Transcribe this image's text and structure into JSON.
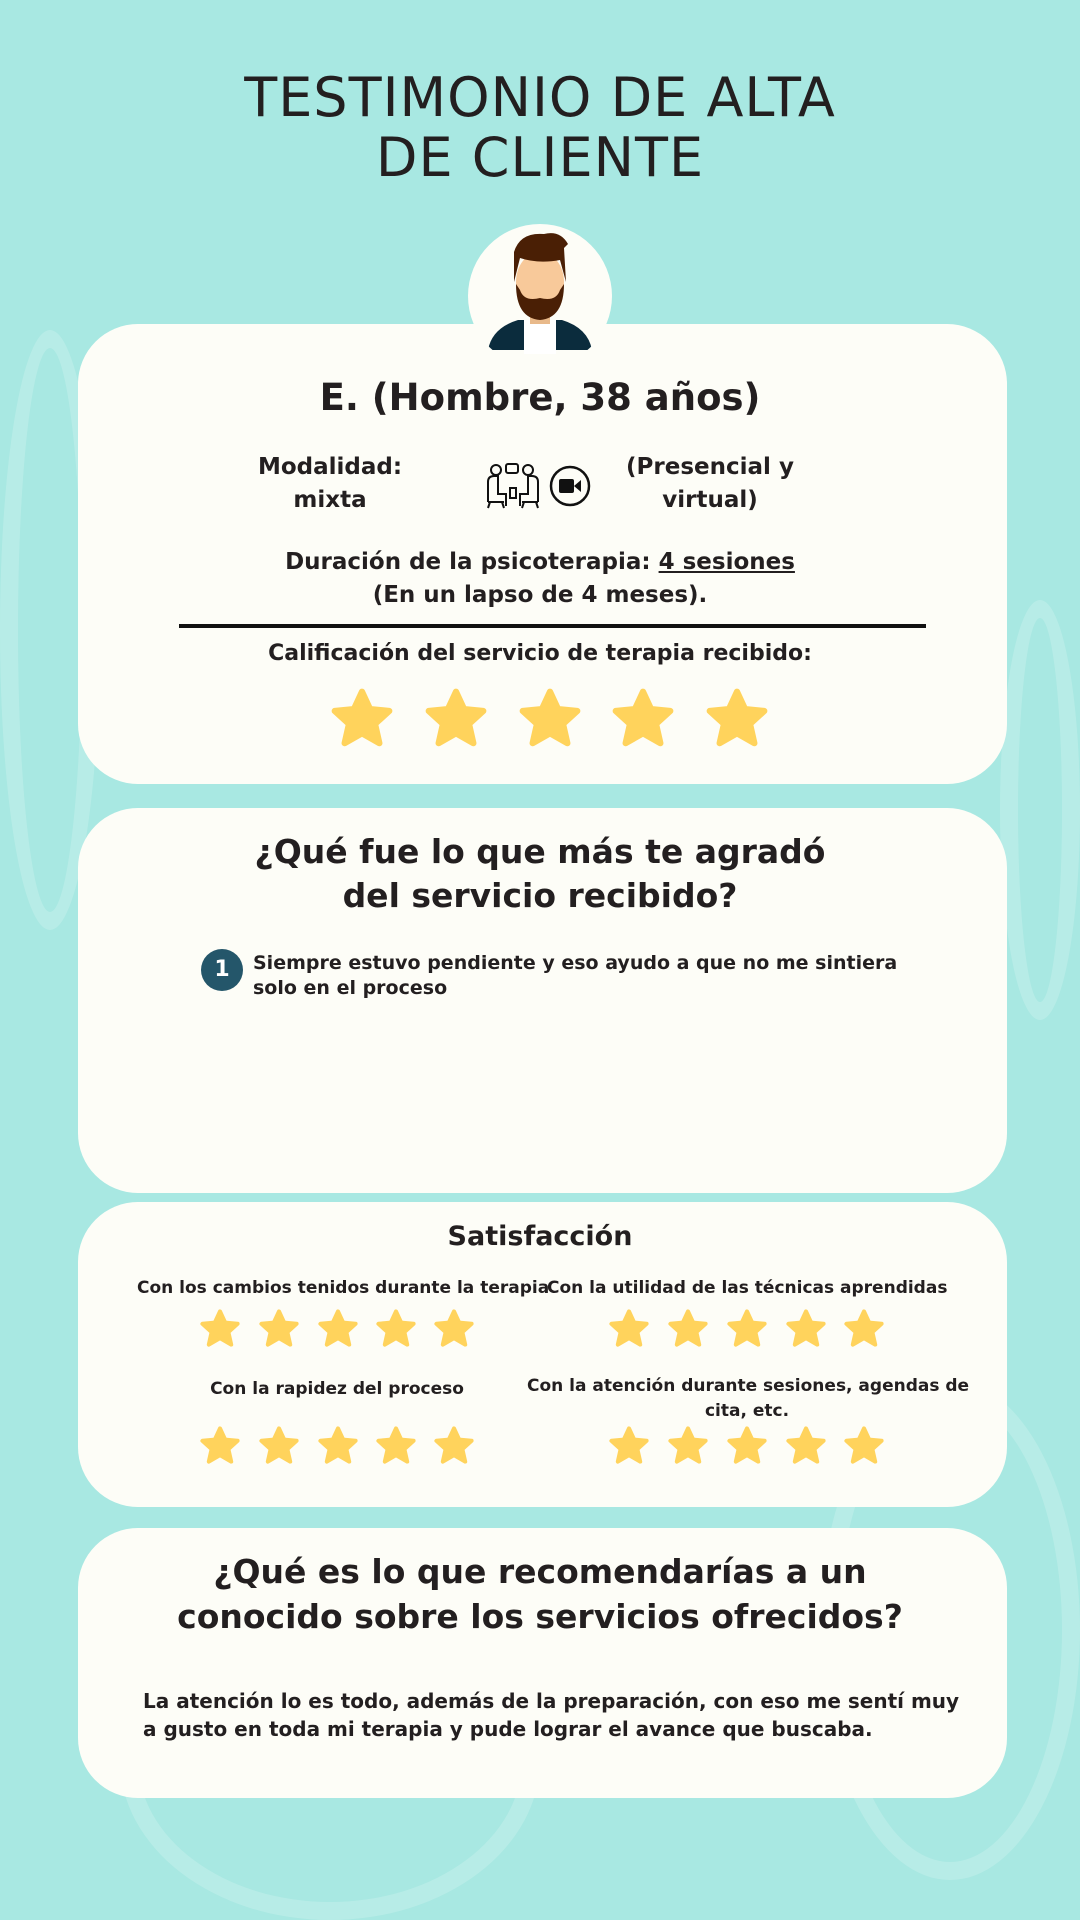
{
  "title": {
    "line1": "TESTIMONIO DE ALTA",
    "line2": "DE CLIENTE"
  },
  "profile": {
    "name": "E. (Hombre, 38 años)",
    "modality_label": "Modalidad:",
    "modality_value": "mixta",
    "modality_detail_line1": "(Presencial y",
    "modality_detail_line2": "virtual)",
    "duration_label": "Duración de la psicoterapia: ",
    "duration_value": "4 sesiones",
    "duration_note": "(En un lapso de 4 meses).",
    "rating_label": "Calificación del servicio de terapia recibido:",
    "rating": 5,
    "rating_max": 5
  },
  "liked": {
    "heading_line1": "¿Qué fue lo que más te agradó",
    "heading_line2": "del servicio recibido?",
    "items": [
      {
        "number": "1",
        "line1": "Siempre estuvo pendiente y eso ayudo a que no me sintiera",
        "line2": "solo en el proceso"
      }
    ]
  },
  "satisfaction": {
    "heading": "Satisfacción",
    "items": [
      {
        "label": "Con los cambios tenidos durante la terapia",
        "rating": 5
      },
      {
        "label": "Con la utilidad de las técnicas aprendidas",
        "rating": 5
      },
      {
        "label": "Con la rapidez del proceso",
        "rating": 5
      },
      {
        "label_line1": "Con la atención durante sesiones, agendas de",
        "label_line2": "cita, etc.",
        "rating": 5
      }
    ]
  },
  "recommend": {
    "heading_line1": "¿Qué es lo que recomendarías a un",
    "heading_line2": "conocido sobre los servicios ofrecidos?",
    "text_line1": "La atención lo es todo, además de la preparación, con eso me sentí muy",
    "text_line2": "a gusto en toda mi terapia y pude lograr el avance que buscaba."
  },
  "colors": {
    "background": "#a8e8e2",
    "card": "#fdfdf7",
    "star": "#ffd35c",
    "badge": "#24566a"
  },
  "icons": [
    "avatar-man-beard",
    "in-person-therapy-icon",
    "video-camera-icon",
    "star-icon"
  ]
}
